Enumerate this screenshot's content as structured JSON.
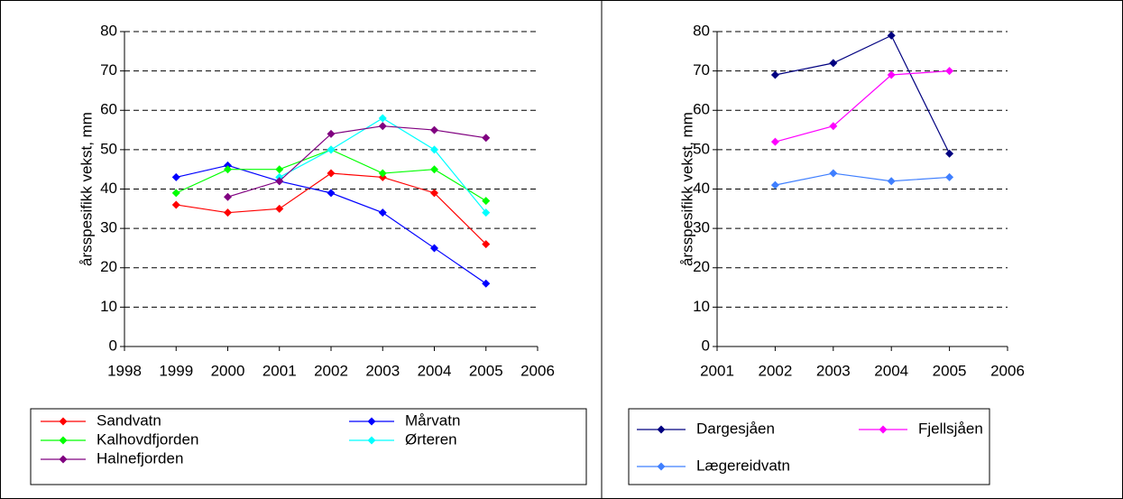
{
  "chart_data": [
    {
      "type": "line",
      "y_label": "årsspesifikk vekst, mm",
      "x": [
        1999,
        2000,
        2001,
        2002,
        2003,
        2004,
        2005
      ],
      "xlim": [
        1998,
        2006
      ],
      "xticks": [
        1998,
        1999,
        2000,
        2001,
        2002,
        2003,
        2004,
        2005,
        2006
      ],
      "ylim": [
        0,
        80
      ],
      "yticks": [
        0,
        10,
        20,
        30,
        40,
        50,
        60,
        70,
        80
      ],
      "grid": true,
      "series": [
        {
          "name": "Sandvatn",
          "color": "#ff0000",
          "values": [
            36,
            34,
            35,
            44,
            43,
            39,
            26
          ]
        },
        {
          "name": "Mårvatn",
          "color": "#0000ff",
          "values": [
            43,
            46,
            42,
            39,
            34,
            25,
            16
          ]
        },
        {
          "name": "Kalhovdfjorden",
          "color": "#00ff00",
          "values": [
            39,
            45,
            45,
            50,
            44,
            45,
            37
          ]
        },
        {
          "name": "Ørteren",
          "color": "#00ffff",
          "values": [
            null,
            null,
            43,
            50,
            58,
            50,
            34
          ]
        },
        {
          "name": "Halnefjorden",
          "color": "#800080",
          "values": [
            null,
            38,
            42,
            54,
            56,
            55,
            53
          ]
        }
      ]
    },
    {
      "type": "line",
      "y_label": "årsspesifikk vekst, mm",
      "x": [
        2002,
        2003,
        2004,
        2005
      ],
      "xlim": [
        2001,
        2006
      ],
      "xticks": [
        2001,
        2002,
        2003,
        2004,
        2005,
        2006
      ],
      "ylim": [
        0,
        80
      ],
      "yticks": [
        0,
        10,
        20,
        30,
        40,
        50,
        60,
        70,
        80
      ],
      "grid": true,
      "series": [
        {
          "name": "Dargesjåen",
          "color": "#000080",
          "values": [
            69,
            72,
            79,
            49
          ]
        },
        {
          "name": "Fjellsjåen",
          "color": "#ff00ff",
          "values": [
            52,
            56,
            69,
            70
          ]
        },
        {
          "name": "Lægereidvatn",
          "color": "#3f7fff",
          "values": [
            41,
            44,
            42,
            43
          ]
        }
      ]
    }
  ]
}
